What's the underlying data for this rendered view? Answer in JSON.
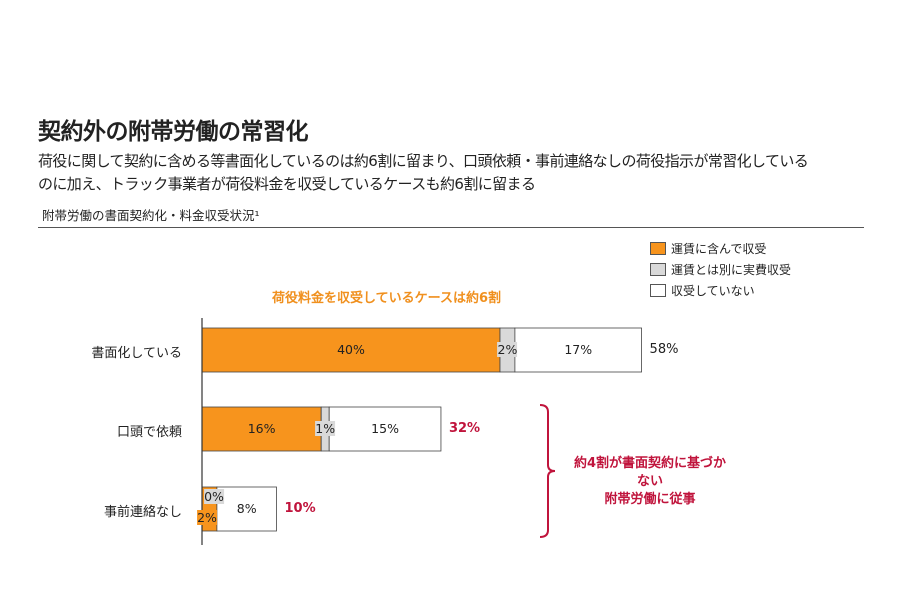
{
  "header": {
    "title": "契約外の附帯労働の常習化",
    "subtitle_line1": "荷役に関して契約に含める等書面化しているのは約6割に留まり、口頭依頼・事前連絡なしの荷役指示が常習化している",
    "subtitle_line2": "のに加え、トラック事業者が荷役料金を収受しているケースも約6割に留まる",
    "chart_label": "附帯労働の書面契約化・料金収受状況¹"
  },
  "chart_data": {
    "type": "bar",
    "orientation": "horizontal",
    "stacked": true,
    "categories": [
      "書面化している",
      "口頭で依頼",
      "事前連絡なし"
    ],
    "series": [
      {
        "name": "運賃に含んで収受",
        "color": "#f7941d",
        "values": [
          40,
          16,
          2
        ],
        "labels": [
          "40%",
          "16%",
          "2%"
        ]
      },
      {
        "name": "運賃とは別に実費収受",
        "color": "#d9d9d9",
        "values": [
          2,
          1,
          0
        ],
        "labels": [
          "2%",
          "1%",
          "0%"
        ]
      },
      {
        "name": "収受していない",
        "color": "#ffffff",
        "values": [
          17,
          15,
          8
        ],
        "labels": [
          "17%",
          "15%",
          "8%"
        ]
      }
    ],
    "totals": [
      "58%",
      "32%",
      "10%"
    ],
    "legend_position": "top-right",
    "annotations": {
      "top": "荷役料金を収受しているケースは約6割",
      "bracket_line1": "約4割が書面契約に基づかない",
      "bracket_line2": "附帯労働に従事"
    }
  }
}
